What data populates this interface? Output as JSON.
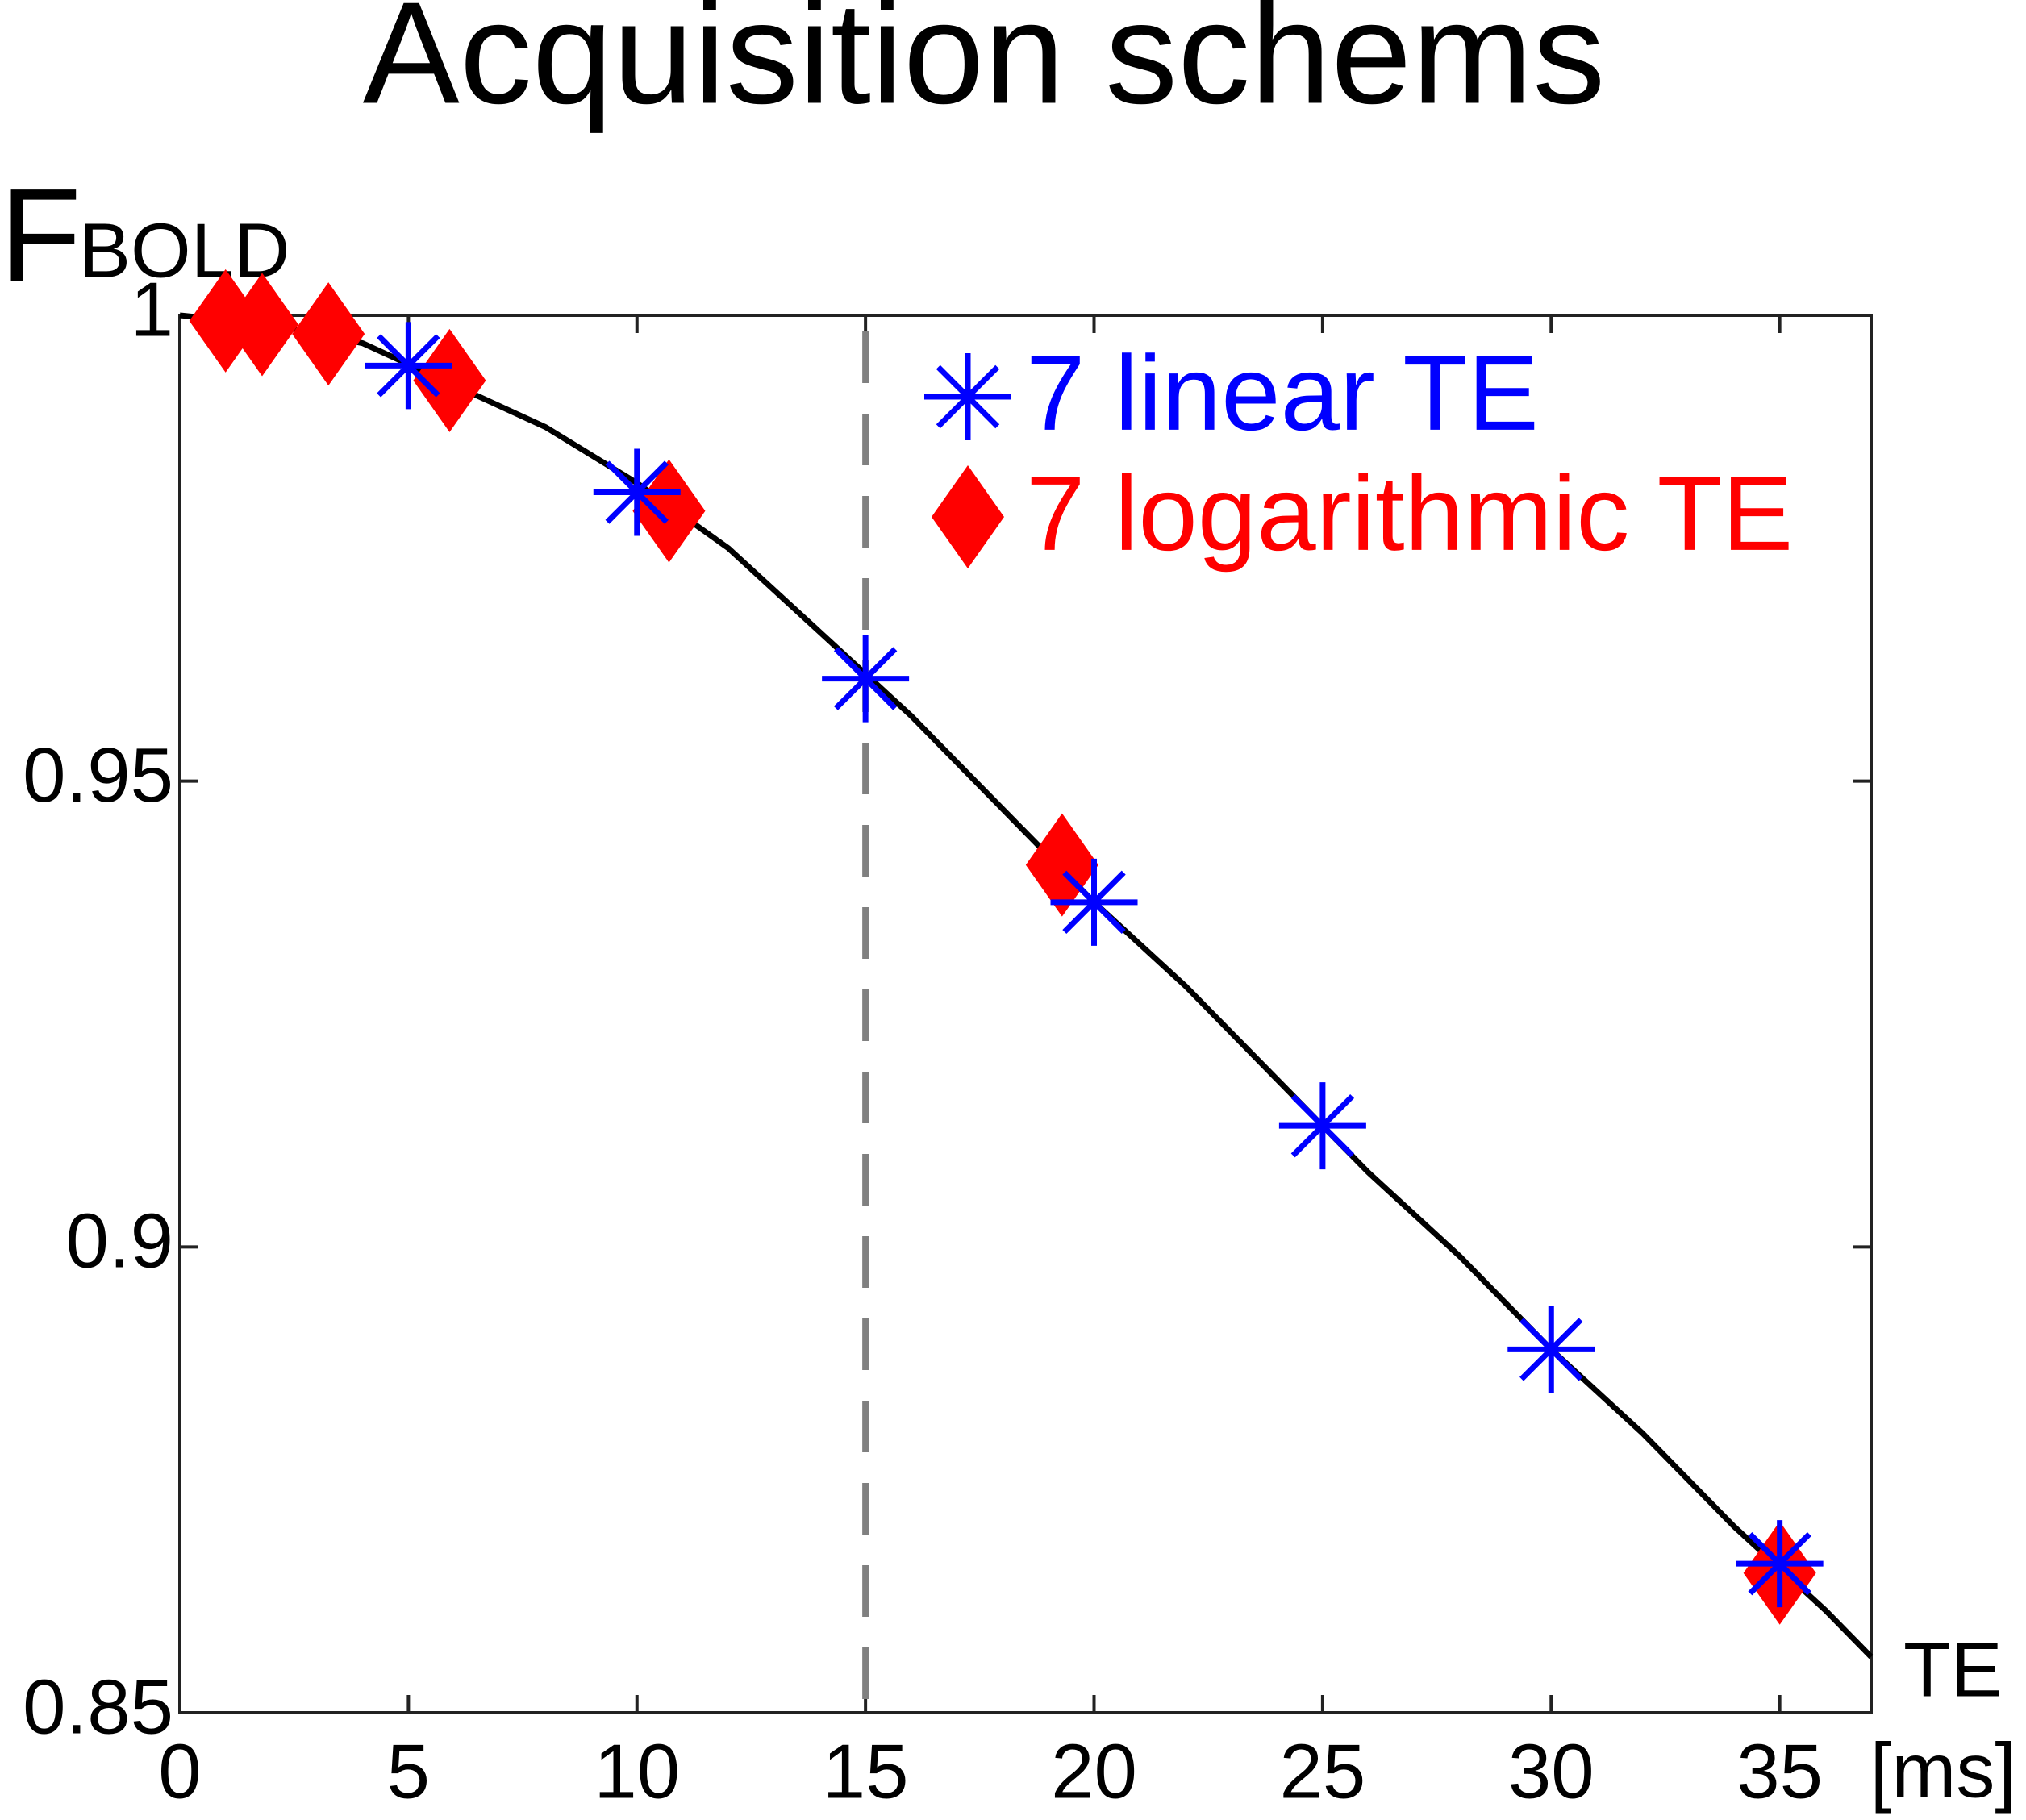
{
  "chart_data": {
    "type": "line",
    "title": "Acquisition schems",
    "ylabel": "F",
    "ylabel_subscript": "BOLD",
    "xlabel": "TE",
    "xunit": "[ms]",
    "xlim": [
      0,
      37
    ],
    "ylim": [
      0.85,
      1
    ],
    "xticks": [
      0,
      5,
      10,
      15,
      20,
      25,
      30,
      35
    ],
    "yticks": [
      0.85,
      0.9,
      0.95,
      1
    ],
    "vline": 15,
    "vline_color": "#808080",
    "curve": {
      "color": "#000000",
      "x": [
        0,
        2,
        4,
        6,
        8,
        10,
        12,
        14,
        16,
        18,
        20,
        22,
        24,
        26,
        28,
        30,
        32,
        34,
        36,
        37
      ],
      "values": [
        1.0,
        0.999,
        0.997,
        0.9925,
        0.988,
        0.982,
        0.975,
        0.966,
        0.957,
        0.947,
        0.937,
        0.928,
        0.918,
        0.908,
        0.899,
        0.889,
        0.88,
        0.87,
        0.861,
        0.856
      ]
    },
    "legend": "upper right",
    "series": [
      {
        "name": "7 linear TE",
        "color": "#0000ff",
        "marker": "asterisk",
        "x": [
          5,
          10,
          15,
          20,
          25,
          30,
          35
        ],
        "values": [
          0.9946,
          0.981,
          0.961,
          0.937,
          0.913,
          0.889,
          0.866
        ]
      },
      {
        "name": "7 logarithmic TE",
        "color": "#ff0000",
        "marker": "diamond",
        "x": [
          1.0,
          1.8,
          3.25,
          5.9,
          10.7,
          19.3,
          35
        ],
        "values": [
          0.9994,
          0.999,
          0.998,
          0.993,
          0.979,
          0.941,
          0.865
        ]
      }
    ]
  }
}
